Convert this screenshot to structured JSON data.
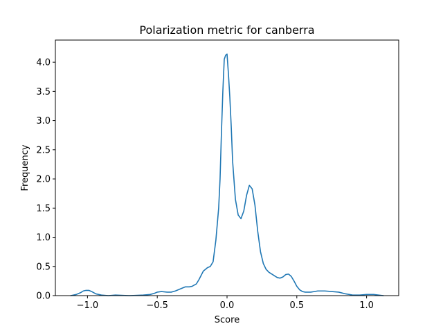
{
  "chart_data": {
    "type": "line",
    "title": "Polarization metric for canberra",
    "xlabel": "Score",
    "ylabel": "Frequency",
    "xlim": [
      -1.23,
      1.23
    ],
    "ylim": [
      0,
      4.38
    ],
    "grid": false,
    "x_ticks": [
      {
        "value": -1.0,
        "label": "−1.0"
      },
      {
        "value": -0.5,
        "label": "−0.5"
      },
      {
        "value": 0.0,
        "label": "0.0"
      },
      {
        "value": 0.5,
        "label": "0.5"
      },
      {
        "value": 1.0,
        "label": "1.0"
      }
    ],
    "y_ticks": [
      {
        "value": 0.0,
        "label": "0.0"
      },
      {
        "value": 0.5,
        "label": "0.5"
      },
      {
        "value": 1.0,
        "label": "1.0"
      },
      {
        "value": 1.5,
        "label": "1.5"
      },
      {
        "value": 2.0,
        "label": "2.0"
      },
      {
        "value": 2.5,
        "label": "2.5"
      },
      {
        "value": 3.0,
        "label": "3.0"
      },
      {
        "value": 3.5,
        "label": "3.5"
      },
      {
        "value": 4.0,
        "label": "4.0"
      }
    ],
    "series": [
      {
        "color": "#1f77b4",
        "x": [
          -1.12,
          -1.08,
          -1.05,
          -1.03,
          -1.01,
          -0.99,
          -0.97,
          -0.94,
          -0.9,
          -0.85,
          -0.8,
          -0.7,
          -0.6,
          -0.55,
          -0.52,
          -0.5,
          -0.47,
          -0.43,
          -0.4,
          -0.37,
          -0.33,
          -0.3,
          -0.27,
          -0.25,
          -0.22,
          -0.2,
          -0.17,
          -0.14,
          -0.12,
          -0.1,
          -0.08,
          -0.06,
          -0.05,
          -0.04,
          -0.03,
          -0.02,
          -0.01,
          0.0,
          0.01,
          0.02,
          0.03,
          0.04,
          0.06,
          0.08,
          0.1,
          0.12,
          0.14,
          0.16,
          0.18,
          0.2,
          0.22,
          0.24,
          0.26,
          0.28,
          0.3,
          0.32,
          0.34,
          0.36,
          0.38,
          0.4,
          0.42,
          0.44,
          0.46,
          0.48,
          0.5,
          0.52,
          0.54,
          0.56,
          0.6,
          0.65,
          0.7,
          0.75,
          0.8,
          0.85,
          0.9,
          0.95,
          1.0,
          1.05,
          1.12
        ],
        "y": [
          0.0,
          0.02,
          0.05,
          0.08,
          0.09,
          0.09,
          0.07,
          0.03,
          0.01,
          0.0,
          0.01,
          0.0,
          0.01,
          0.02,
          0.04,
          0.06,
          0.07,
          0.06,
          0.06,
          0.08,
          0.12,
          0.15,
          0.15,
          0.16,
          0.2,
          0.28,
          0.42,
          0.48,
          0.5,
          0.58,
          0.95,
          1.5,
          2.0,
          2.8,
          3.5,
          4.05,
          4.12,
          4.14,
          3.8,
          3.4,
          2.9,
          2.3,
          1.65,
          1.38,
          1.32,
          1.45,
          1.72,
          1.89,
          1.83,
          1.55,
          1.1,
          0.75,
          0.55,
          0.45,
          0.4,
          0.37,
          0.34,
          0.31,
          0.3,
          0.32,
          0.36,
          0.37,
          0.33,
          0.25,
          0.16,
          0.1,
          0.07,
          0.06,
          0.06,
          0.08,
          0.08,
          0.07,
          0.06,
          0.03,
          0.01,
          0.01,
          0.02,
          0.02,
          0.0
        ]
      }
    ]
  }
}
